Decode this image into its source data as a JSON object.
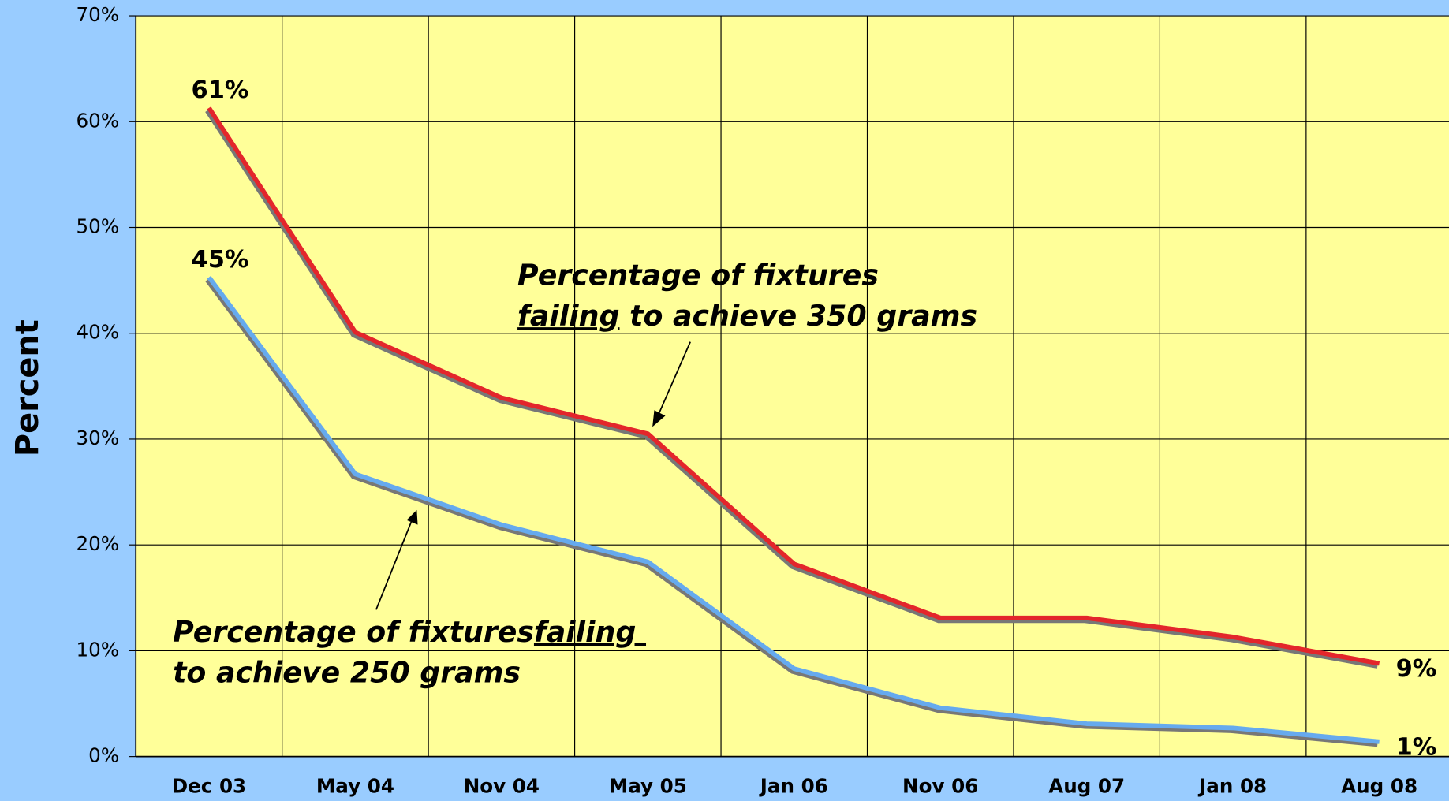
{
  "chart_data": {
    "type": "line",
    "ylabel": "Percent",
    "categories": [
      "Dec 03",
      "May 04",
      "Nov 04",
      "May 05",
      "Jan 06",
      "Nov 06",
      "Aug 07",
      "Jan 08",
      "Aug 08"
    ],
    "series": [
      {
        "color": "#e3262b",
        "values": [
          61.3,
          40.1,
          33.9,
          30.5,
          18.2,
          13.1,
          13.1,
          11.3,
          8.8
        ],
        "value_labels": [
          "61%",
          null,
          null,
          null,
          null,
          null,
          null,
          null,
          "9%"
        ]
      },
      {
        "color": "#66aaee",
        "values": [
          45.3,
          26.7,
          21.9,
          18.4,
          8.3,
          4.6,
          3.1,
          2.7,
          1.4
        ],
        "value_labels": [
          "45%",
          null,
          null,
          null,
          null,
          null,
          null,
          null,
          "1%"
        ]
      }
    ],
    "ylim": [
      0,
      70
    ],
    "yticks": [
      {
        "value": 0,
        "label": "0%"
      },
      {
        "value": 10,
        "label": "10%"
      },
      {
        "value": 20,
        "label": "20%"
      },
      {
        "value": 30,
        "label": "30%"
      },
      {
        "value": 40,
        "label": "40%"
      },
      {
        "value": 50,
        "label": "50%"
      },
      {
        "value": 60,
        "label": "60%"
      },
      {
        "value": 70,
        "label": "70%"
      }
    ],
    "grid": true,
    "annotations": [
      {
        "lines": [
          [
            {
              "text": "Percentage of fixtures"
            }
          ],
          [
            {
              "text": "failing",
              "underline": true
            },
            {
              "text": " to achieve 350 grams"
            }
          ]
        ]
      },
      {
        "lines": [
          [
            {
              "text": "Percentage of fixtures"
            },
            {
              "text": "failing ",
              "underline": true
            }
          ],
          [
            {
              "text": "to achieve 250 grams"
            }
          ]
        ]
      }
    ]
  }
}
